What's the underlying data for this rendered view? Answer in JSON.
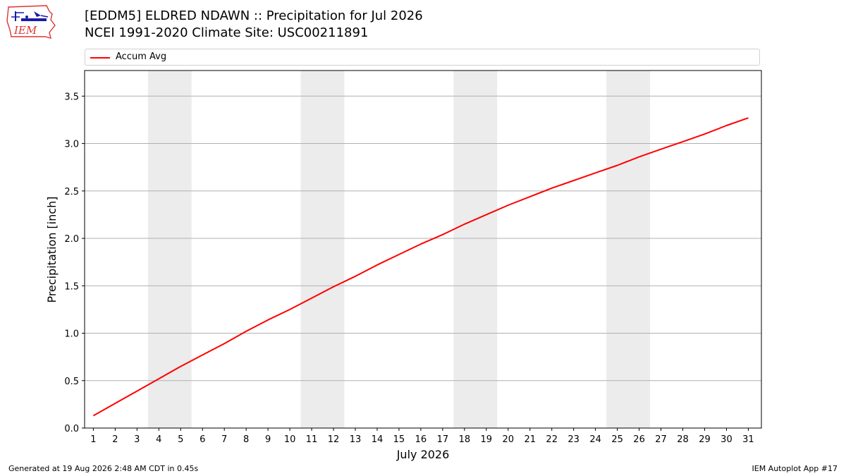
{
  "header": {
    "title_line1": "[EDDM5] ELDRED NDAWN :: Precipitation for Jul 2026",
    "title_line2": "NCEI 1991-2020 Climate Site: USC00211891",
    "logo_text": "IEM"
  },
  "footer": {
    "generated": "Generated at 19 Aug 2026 2:48 AM CDT in 0.45s",
    "app": "IEM Autoplot App #17"
  },
  "chart_data": {
    "type": "line",
    "xlabel": "July 2026",
    "ylabel": "Precipitation [inch]",
    "xlim": [
      0.6,
      31.6
    ],
    "ylim": [
      0,
      3.77
    ],
    "yticks": [
      0.0,
      0.5,
      1.0,
      1.5,
      2.0,
      2.5,
      3.0,
      3.5
    ],
    "ytick_labels": [
      "0.0",
      "0.5",
      "1.0",
      "1.5",
      "2.0",
      "2.5",
      "3.0",
      "3.5"
    ],
    "x": [
      1,
      2,
      3,
      4,
      5,
      6,
      7,
      8,
      9,
      10,
      11,
      12,
      13,
      14,
      15,
      16,
      17,
      18,
      19,
      20,
      21,
      22,
      23,
      24,
      25,
      26,
      27,
      28,
      29,
      30,
      31
    ],
    "xtick_labels": [
      "1",
      "2",
      "3",
      "4",
      "5",
      "6",
      "7",
      "8",
      "9",
      "10",
      "11",
      "12",
      "13",
      "14",
      "15",
      "16",
      "17",
      "18",
      "19",
      "20",
      "21",
      "22",
      "23",
      "24",
      "25",
      "26",
      "27",
      "28",
      "29",
      "30",
      "31"
    ],
    "grid": "horizontal",
    "legend_position": "top",
    "weekend_bands": [
      [
        3.5,
        5.5
      ],
      [
        10.5,
        12.5
      ],
      [
        17.5,
        19.5
      ],
      [
        24.5,
        26.5
      ]
    ],
    "band_color": "#ececec",
    "series": [
      {
        "name": "Accum Avg",
        "color": "#ff0000",
        "values": [
          0.13,
          0.26,
          0.39,
          0.52,
          0.65,
          0.77,
          0.89,
          1.02,
          1.14,
          1.25,
          1.37,
          1.49,
          1.6,
          1.72,
          1.83,
          1.94,
          2.04,
          2.15,
          2.25,
          2.35,
          2.44,
          2.53,
          2.61,
          2.69,
          2.77,
          2.86,
          2.94,
          3.02,
          3.1,
          3.19,
          3.27
        ]
      }
    ]
  }
}
